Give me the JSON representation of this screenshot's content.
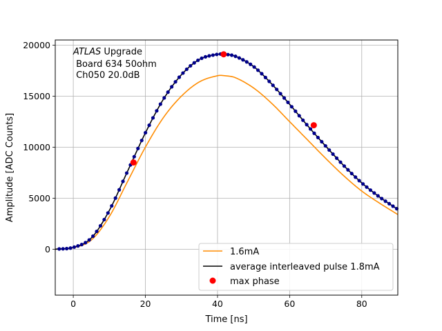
{
  "chart_data": {
    "type": "line",
    "xlabel": "Time [ns]",
    "ylabel": "Amplitude [ADC Counts]",
    "xlim": [
      -5,
      90
    ],
    "ylim": [
      -4500,
      20500
    ],
    "xticks": [
      0,
      20,
      40,
      60,
      80
    ],
    "yticks": [
      0,
      5000,
      10000,
      15000,
      20000
    ],
    "grid": true,
    "legend_position": "lower-right",
    "annotation": {
      "line1_italic": "ATLAS",
      "line1_rest": " Upgrade",
      "line2": " Board 634 50ohm",
      "line3": " Ch050 20.0dB"
    },
    "series": [
      {
        "name": "1.6mA",
        "style": "line",
        "color": "#ff8c00",
        "x": [
          -5,
          0,
          5,
          10,
          15,
          20,
          25,
          30,
          35,
          40,
          42,
          45,
          50,
          55,
          60,
          65,
          70,
          75,
          80,
          85,
          90
        ],
        "y": [
          0,
          150,
          900,
          3200,
          6600,
          10000,
          12900,
          15000,
          16400,
          17000,
          17000,
          16800,
          15800,
          14300,
          12500,
          10700,
          8900,
          7200,
          5700,
          4500,
          3400
        ]
      },
      {
        "name": "average interleaved pulse 1.8mA",
        "style": "line+markers",
        "color": "#000000",
        "marker_color": "#00008b",
        "x": [
          -5,
          0,
          5,
          10,
          15,
          20,
          25,
          30,
          35,
          40,
          42,
          45,
          50,
          55,
          60,
          65,
          70,
          75,
          80,
          85,
          90
        ],
        "y": [
          0,
          180,
          1100,
          3800,
          7600,
          11400,
          14700,
          17100,
          18600,
          19100,
          19100,
          18900,
          17900,
          16200,
          14200,
          12100,
          10100,
          8200,
          6500,
          5100,
          3900
        ]
      },
      {
        "name": "max phase",
        "style": "markers",
        "color": "#ff0000",
        "x": [
          16.7,
          41.7,
          66.7
        ],
        "y": [
          8500,
          19100,
          12150
        ]
      }
    ]
  }
}
